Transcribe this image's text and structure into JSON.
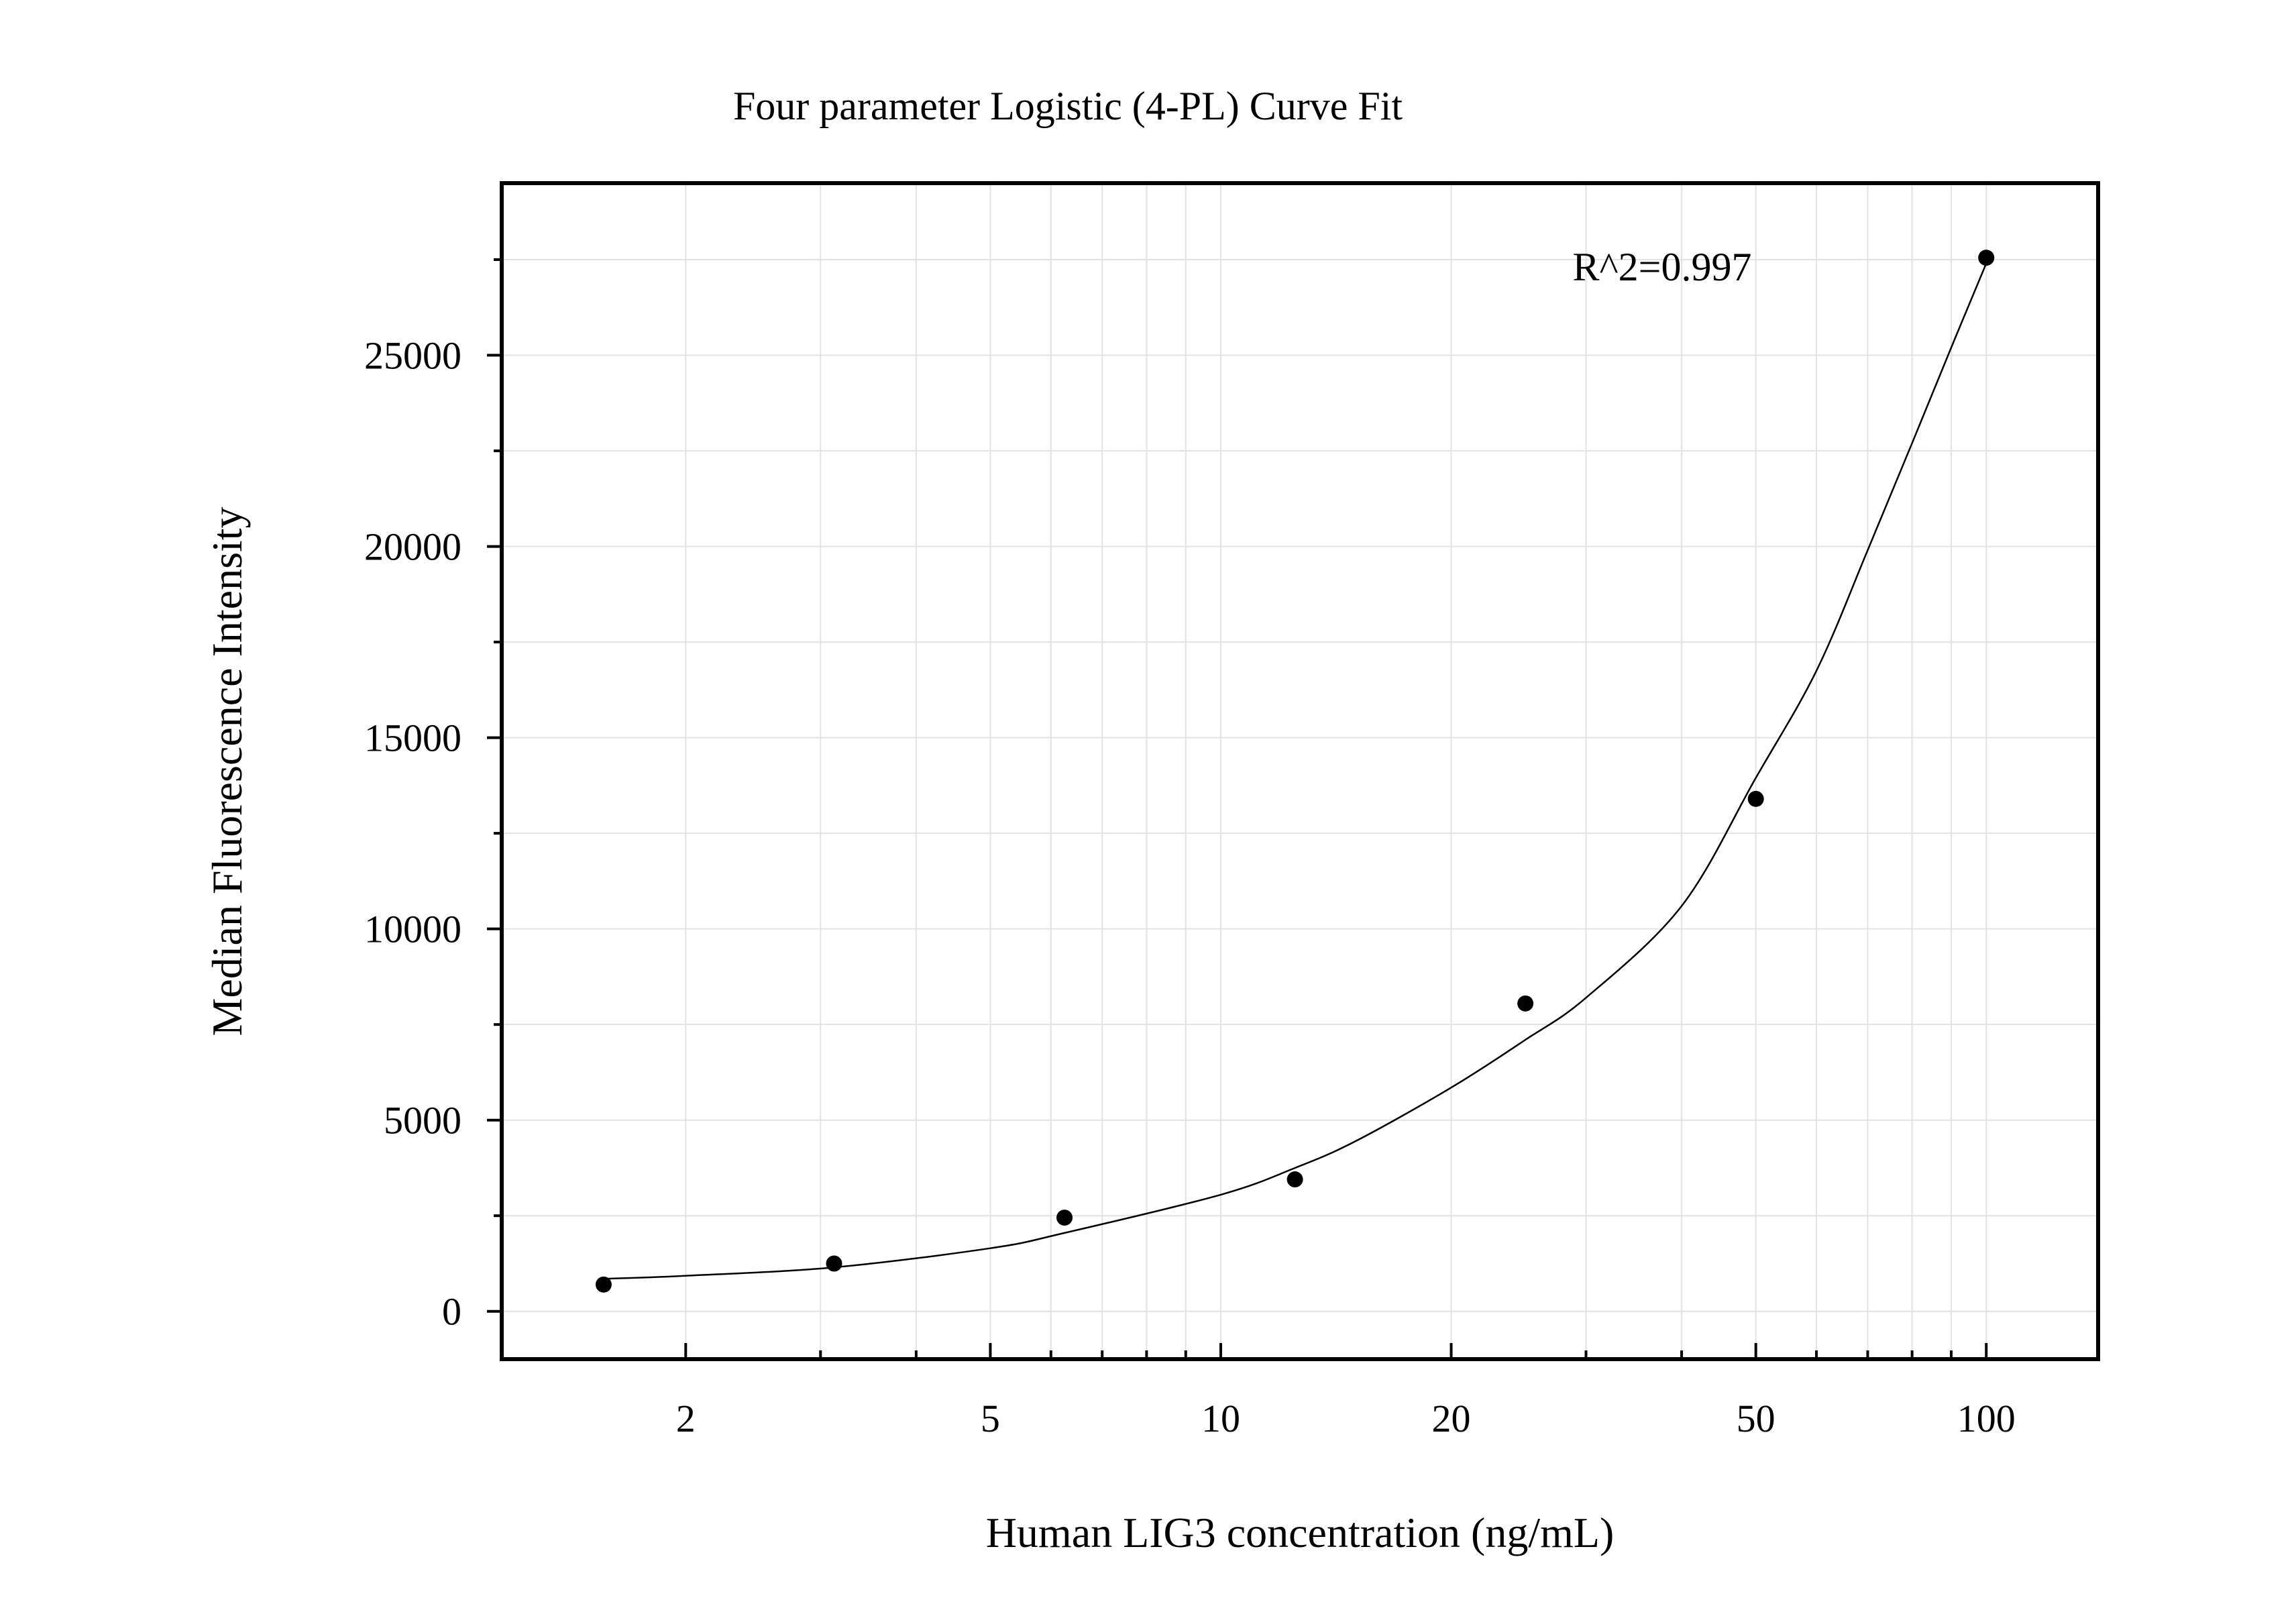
{
  "chart_data": {
    "type": "scatter",
    "title": "Four parameter Logistic (4-PL) Curve Fit",
    "xlabel": "Human LIG3 concentration (ng/mL)",
    "ylabel": "Median Fluorescence Intensity",
    "x_scale": "log",
    "xlim": [
      1.15,
      140
    ],
    "ylim": [
      -1250,
      29500
    ],
    "x_ticks": [
      2,
      5,
      10,
      20,
      50,
      100
    ],
    "x_tick_labels": [
      "2",
      "5",
      "10",
      "20",
      "50",
      "100"
    ],
    "y_ticks": [
      0,
      5000,
      10000,
      15000,
      20000,
      25000
    ],
    "y_tick_labels": [
      "0",
      "5000",
      "10000",
      "15000",
      "20000",
      "25000"
    ],
    "grid": true,
    "annotation": "R^2=0.997",
    "series": [
      {
        "type": "scatter",
        "x": [
          1.5625,
          3.125,
          6.25,
          12.5,
          25,
          50,
          100
        ],
        "y": [
          700,
          1250,
          2450,
          3450,
          8050,
          13400,
          27550
        ]
      },
      {
        "type": "line",
        "x": [
          1.5625,
          2,
          3.125,
          5,
          6.25,
          10,
          12.5,
          15,
          20,
          25,
          30,
          40,
          50,
          60,
          70,
          80,
          90,
          100
        ],
        "y": [
          850,
          930,
          1150,
          1650,
          2050,
          3050,
          3750,
          4450,
          5850,
          7100,
          8200,
          10600,
          13950,
          16750,
          19900,
          22700,
          25200,
          27400
        ]
      }
    ],
    "colors": {
      "axes": "#000000",
      "grid": "#e3e3e3",
      "points": "#000000",
      "curve": "#000000"
    }
  }
}
